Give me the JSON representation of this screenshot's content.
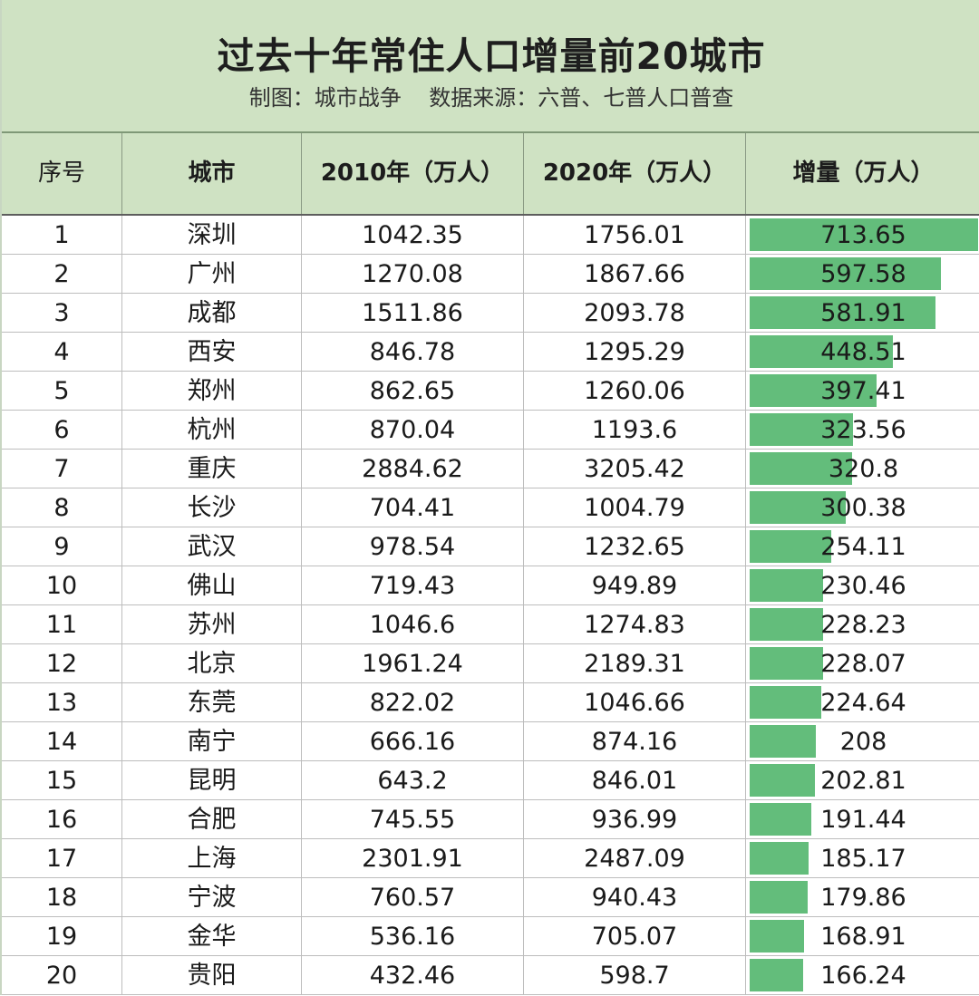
{
  "title": "过去十年常住人口增量前20城市",
  "subtitle": "制图：城市战争    数据来源：六普、七普人口普查",
  "colors": {
    "header_bg": "#cfe2c3",
    "bar": "#63bd7b"
  },
  "columns": [
    "序号",
    "城市",
    "2010年（万人）",
    "2020年（万人）",
    "增量（万人）"
  ],
  "rows": [
    {
      "rank": "1",
      "city": "深圳",
      "y2010": "1042.35",
      "y2020": "1756.01",
      "inc": "713.65"
    },
    {
      "rank": "2",
      "city": "广州",
      "y2010": "1270.08",
      "y2020": "1867.66",
      "inc": "597.58"
    },
    {
      "rank": "3",
      "city": "成都",
      "y2010": "1511.86",
      "y2020": "2093.78",
      "inc": "581.91"
    },
    {
      "rank": "4",
      "city": "西安",
      "y2010": "846.78",
      "y2020": "1295.29",
      "inc": "448.51"
    },
    {
      "rank": "5",
      "city": "郑州",
      "y2010": "862.65",
      "y2020": "1260.06",
      "inc": "397.41"
    },
    {
      "rank": "6",
      "city": "杭州",
      "y2010": "870.04",
      "y2020": "1193.6",
      "inc": "323.56"
    },
    {
      "rank": "7",
      "city": "重庆",
      "y2010": "2884.62",
      "y2020": "3205.42",
      "inc": "320.8"
    },
    {
      "rank": "8",
      "city": "长沙",
      "y2010": "704.41",
      "y2020": "1004.79",
      "inc": "300.38"
    },
    {
      "rank": "9",
      "city": "武汉",
      "y2010": "978.54",
      "y2020": "1232.65",
      "inc": "254.11"
    },
    {
      "rank": "10",
      "city": "佛山",
      "y2010": "719.43",
      "y2020": "949.89",
      "inc": "230.46"
    },
    {
      "rank": "11",
      "city": "苏州",
      "y2010": "1046.6",
      "y2020": "1274.83",
      "inc": "228.23"
    },
    {
      "rank": "12",
      "city": "北京",
      "y2010": "1961.24",
      "y2020": "2189.31",
      "inc": "228.07"
    },
    {
      "rank": "13",
      "city": "东莞",
      "y2010": "822.02",
      "y2020": "1046.66",
      "inc": "224.64"
    },
    {
      "rank": "14",
      "city": "南宁",
      "y2010": "666.16",
      "y2020": "874.16",
      "inc": "208"
    },
    {
      "rank": "15",
      "city": "昆明",
      "y2010": "643.2",
      "y2020": "846.01",
      "inc": "202.81"
    },
    {
      "rank": "16",
      "city": "合肥",
      "y2010": "745.55",
      "y2020": "936.99",
      "inc": "191.44"
    },
    {
      "rank": "17",
      "city": "上海",
      "y2010": "2301.91",
      "y2020": "2487.09",
      "inc": "185.17"
    },
    {
      "rank": "18",
      "city": "宁波",
      "y2010": "760.57",
      "y2020": "940.43",
      "inc": "179.86"
    },
    {
      "rank": "19",
      "city": "金华",
      "y2010": "536.16",
      "y2020": "705.07",
      "inc": "168.91"
    },
    {
      "rank": "20",
      "city": "贵阳",
      "y2010": "432.46",
      "y2020": "598.7",
      "inc": "166.24"
    }
  ]
}
